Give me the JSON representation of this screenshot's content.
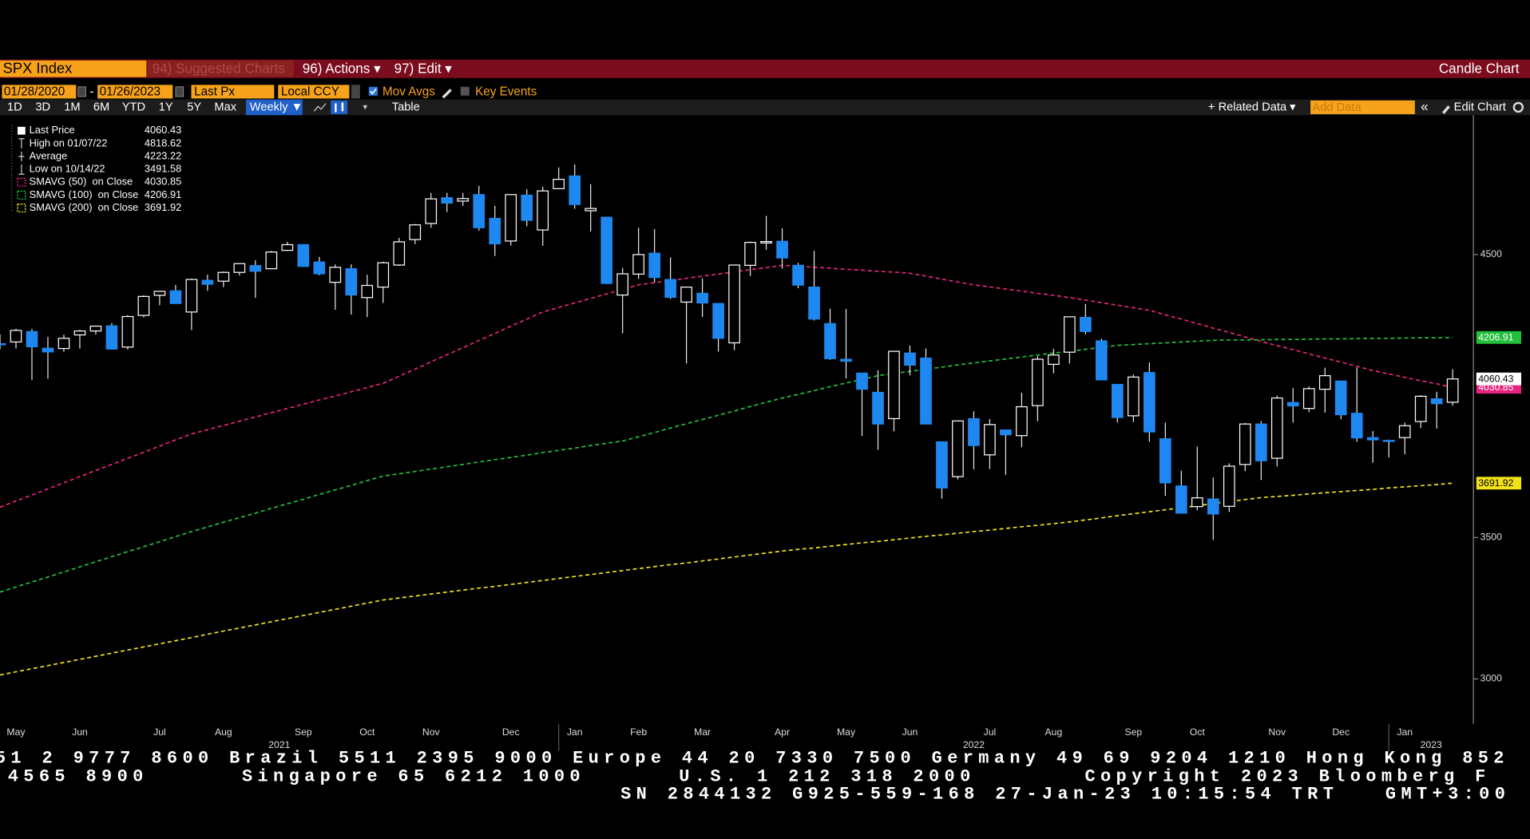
{
  "ui": {
    "security": "SPX Index",
    "suggested": "94) Suggested Charts",
    "actions": "96) Actions ▾",
    "edit": "97) Edit ▾",
    "chart_kind": "Candle Chart",
    "start_date": "01/28/2020",
    "date_sep": "-",
    "end_date": "01/26/2023",
    "field": "Last Px",
    "currency": "Local CCY",
    "mov_avgs": "Mov Avgs",
    "key_events": "Key Events",
    "periods": [
      "1D",
      "3D",
      "1M",
      "6M",
      "YTD",
      "1Y",
      "5Y",
      "Max"
    ],
    "frequency": "Weekly ▼",
    "table": "Table",
    "related": "+ Related Data ▾",
    "add_data": "Add Data",
    "edit_chart": "Edit Chart",
    "footer": [
      "51 2 9777 8600 Brazil 5511 2395 9000 Europe 44 20 7330 7500 Germany 49 69 9204 1210 Hong Kong 852",
      "4565 8900      Singapore 65 6212 1000      U.S. 1 212 318 2000       Copyright 2023 Bloomberg F",
      "SN 2844132 G925-559-168 27-Jan-23 10:15:54 TRT   GMT+3:00"
    ]
  },
  "chart_data": {
    "type": "candlestick",
    "categories": [
      null,
      "May",
      null,
      null,
      null,
      "Jun",
      null,
      null,
      null,
      null,
      "Jul",
      null,
      null,
      null,
      "Aug",
      null,
      null,
      null,
      null,
      "Sep",
      null,
      null,
      null,
      "Oct",
      null,
      null,
      null,
      "Nov",
      null,
      null,
      null,
      null,
      "Dec",
      null,
      null,
      null,
      "Jan",
      null,
      null,
      null,
      "Feb",
      null,
      null,
      null,
      "Mar",
      null,
      null,
      null,
      null,
      "Apr",
      null,
      null,
      null,
      "May",
      null,
      null,
      null,
      "Jun",
      null,
      null,
      null,
      null,
      "Jul",
      null,
      null,
      null,
      "Aug",
      null,
      null,
      null,
      null,
      "Sep",
      null,
      null,
      null,
      "Oct",
      null,
      null,
      null,
      null,
      "Nov",
      null,
      null,
      null,
      "Dec",
      null,
      null,
      null,
      "Jan",
      null,
      null,
      null
    ],
    "year_labels": [
      "2021",
      "2022",
      "2023"
    ],
    "open": [
      4185,
      4191,
      4228,
      4169,
      4168,
      4216,
      4230,
      4248,
      4173,
      4285,
      4356,
      4372,
      4297,
      4409,
      4406,
      4437,
      4461,
      4450,
      4515,
      4535,
      4474,
      4402,
      4450,
      4348,
      4385,
      4463,
      4553,
      4610,
      4701,
      4689,
      4712,
      4628,
      4548,
      4710,
      4587,
      4733,
      4778,
      4655,
      4632,
      4357,
      4431,
      4505,
      4412,
      4332,
      4363,
      4327,
      4188,
      4462,
      4541,
      4547,
      4462,
      4385,
      4256,
      4130,
      4081,
      4013,
      3920,
      4152,
      4134,
      3838,
      3715,
      3920,
      3792,
      3880,
      3860,
      3966,
      4112,
      4155,
      4278,
      4195,
      4041,
      3930,
      4083,
      3849,
      3682,
      3609,
      3636,
      3610,
      3758,
      3901,
      3780,
      3977,
      3956,
      4024,
      4053,
      3939,
      3853,
      3843,
      3853,
      3910,
      3990,
      3978
    ],
    "high": [
      4218,
      4238,
      4237,
      4209,
      4217,
      4234,
      4249,
      4258,
      4286,
      4356,
      4372,
      4393,
      4415,
      4429,
      4440,
      4468,
      4480,
      4513,
      4545,
      4536,
      4492,
      4465,
      4465,
      4429,
      4475,
      4559,
      4608,
      4718,
      4718,
      4718,
      4743,
      4672,
      4713,
      4731,
      4740,
      4808,
      4818.62,
      4749,
      4632,
      4453,
      4595,
      4590,
      4490,
      4386,
      4416,
      4327,
      4465,
      4546,
      4637,
      4593,
      4471,
      4513,
      4309,
      4308,
      4081,
      4091,
      4158,
      4178,
      4168,
      3838,
      3913,
      3946,
      3919,
      3880,
      4012,
      4141,
      4167,
      4280,
      4325,
      4203,
      4041,
      4076,
      4119,
      3906,
      3736,
      3821,
      3712,
      3762,
      3905,
      3911,
      4001,
      4028,
      4034,
      4100,
      4053,
      4101,
      3876,
      3846,
      3906,
      4003,
      4015,
      4095
    ],
    "low": [
      4165,
      4168,
      4057,
      4061,
      4156,
      4168,
      4217,
      4165,
      4164,
      4278,
      4321,
      4327,
      4233,
      4372,
      4385,
      4426,
      4347,
      4450,
      4513,
      4457,
      4427,
      4305,
      4288,
      4279,
      4329,
      4460,
      4537,
      4595,
      4650,
      4672,
      4585,
      4495,
      4532,
      4600,
      4531,
      4733,
      4662,
      4582,
      4395,
      4222,
      4414,
      4401,
      4343,
      4115,
      4279,
      4157,
      4162,
      4424,
      4517,
      4450,
      4381,
      4267,
      4128,
      4062,
      3859,
      3810,
      3875,
      4073,
      3900,
      3637,
      3705,
      3741,
      3742,
      3721,
      3819,
      3911,
      4080,
      4115,
      4218,
      4057,
      3906,
      3908,
      3838,
      3647,
      3584,
      3596,
      3491.58,
      3590,
      3734,
      3703,
      3751,
      3906,
      3943,
      3941,
      3918,
      3838,
      3764,
      3783,
      3794,
      3887,
      3885,
      3966
    ],
    "close": [
      4181,
      4232,
      4174,
      4156,
      4204,
      4230,
      4247,
      4166,
      4281,
      4352,
      4370,
      4327,
      4412,
      4395,
      4437,
      4468,
      4441,
      4509,
      4535,
      4458,
      4432,
      4455,
      4357,
      4391,
      4471,
      4545,
      4605,
      4697,
      4682,
      4698,
      4595,
      4538,
      4712,
      4621,
      4725,
      4766,
      4677,
      4663,
      4398,
      4432,
      4500,
      4419,
      4349,
      4385,
      4329,
      4204,
      4463,
      4543,
      4546,
      4488,
      4392,
      4272,
      4132,
      4123,
      4024,
      3901,
      4158,
      4109,
      3901,
      3675,
      3912,
      3825,
      3899,
      3863,
      3962,
      4130,
      4145,
      4280,
      4228,
      4057,
      3924,
      4067,
      3873,
      3693,
      3586,
      3640,
      3583,
      3752,
      3901,
      3771,
      3993,
      3965,
      4026,
      4072,
      3934,
      3852,
      3845,
      3840,
      3895,
      3999,
      3973,
      4060.43
    ],
    "up_color": "#ffffff",
    "down_color": "#1e88f0",
    "series": [
      {
        "name": "SMAVG (50)  on Close",
        "color": "#e8237f",
        "values": [
          3607,
          3629,
          3650,
          3672,
          3693,
          3715,
          3737,
          3758,
          3780,
          3801,
          3823,
          3845,
          3866,
          3881,
          3896,
          3911,
          3926,
          3941,
          3956,
          3971,
          3986,
          4000,
          4015,
          4030,
          4045,
          4070,
          4095,
          4121,
          4146,
          4171,
          4196,
          4221,
          4247,
          4272,
          4297,
          4313,
          4329,
          4345,
          4361,
          4377,
          4393,
          4401,
          4408,
          4416,
          4424,
          4431,
          4439,
          4447,
          4454,
          4462,
          4459,
          4455,
          4452,
          4448,
          4445,
          4441,
          4438,
          4434,
          4424,
          4413,
          4403,
          4393,
          4386,
          4378,
          4371,
          4363,
          4356,
          4348,
          4339,
          4330,
          4321,
          4312,
          4303,
          4287,
          4272,
          4256,
          4240,
          4225,
          4209,
          4193,
          4178,
          4164,
          4149,
          4134,
          4120,
          4105,
          4090,
          4078,
          4066,
          4054,
          4043,
          4030.85
        ]
      },
      {
        "name": "SMAVG (100)  on Close",
        "color": "#22c03c",
        "values": [
          3307,
          3325,
          3343,
          3360,
          3378,
          3396,
          3414,
          3432,
          3450,
          3467,
          3485,
          3503,
          3521,
          3537,
          3554,
          3570,
          3586,
          3603,
          3619,
          3635,
          3652,
          3668,
          3684,
          3701,
          3717,
          3725,
          3733,
          3742,
          3750,
          3758,
          3767,
          3775,
          3783,
          3791,
          3800,
          3808,
          3816,
          3825,
          3833,
          3841,
          3856,
          3871,
          3887,
          3902,
          3917,
          3932,
          3947,
          3963,
          3978,
          3993,
          4006,
          4019,
          4033,
          4046,
          4059,
          4072,
          4080,
          4087,
          4095,
          4102,
          4110,
          4117,
          4124,
          4131,
          4138,
          4145,
          4152,
          4158,
          4165,
          4172,
          4179,
          4182,
          4185,
          4188,
          4191,
          4194,
          4197,
          4198,
          4198,
          4199,
          4200,
          4200,
          4201,
          4202,
          4202,
          4203,
          4204,
          4204,
          4205,
          4206,
          4206,
          4206.91
        ]
      },
      {
        "name": "SMAVG (200)  on Close",
        "color": "#f2e21a",
        "values": [
          3014,
          3025,
          3036,
          3047,
          3058,
          3069,
          3080,
          3091,
          3102,
          3113,
          3124,
          3135,
          3146,
          3158,
          3169,
          3180,
          3191,
          3202,
          3213,
          3224,
          3235,
          3246,
          3257,
          3268,
          3279,
          3286,
          3293,
          3300,
          3307,
          3314,
          3321,
          3327,
          3334,
          3341,
          3348,
          3355,
          3362,
          3369,
          3376,
          3383,
          3390,
          3397,
          3404,
          3410,
          3417,
          3424,
          3431,
          3438,
          3445,
          3452,
          3458,
          3463,
          3469,
          3475,
          3481,
          3486,
          3492,
          3498,
          3504,
          3509,
          3515,
          3521,
          3526,
          3532,
          3538,
          3543,
          3549,
          3555,
          3562,
          3569,
          3577,
          3584,
          3591,
          3598,
          3605,
          3612,
          3620,
          3627,
          3634,
          3641,
          3645,
          3649,
          3654,
          3658,
          3662,
          3666,
          3670,
          3675,
          3679,
          3683,
          3687,
          3691.92
        ]
      }
    ],
    "stats": [
      {
        "label": "Last Price",
        "value": 4060.43
      },
      {
        "label": "High on 01/07/22",
        "value": 4818.62
      },
      {
        "label": "Average",
        "value": 4223.22
      },
      {
        "label": "Low on 10/14/22",
        "value": 3491.58
      }
    ],
    "ylim": [
      2841,
      4993
    ],
    "yticks": [
      3000,
      3500,
      4500
    ]
  }
}
